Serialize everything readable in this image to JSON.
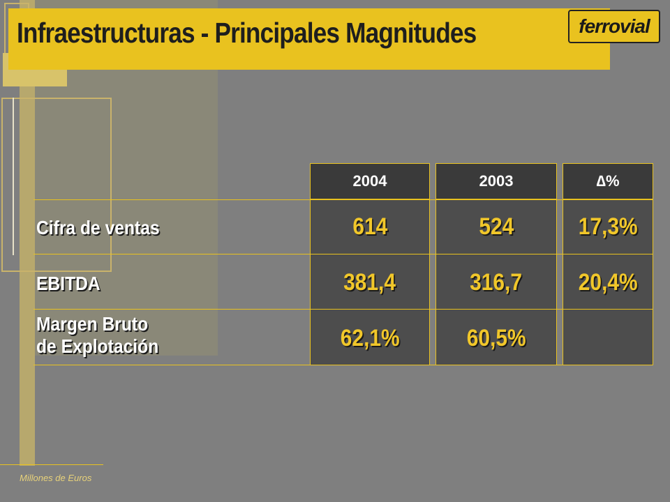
{
  "slide": {
    "title": "Infraestructuras - Principales Magnitudes",
    "logo_text": "ferrovial",
    "footnote": "Millones de Euros"
  },
  "table": {
    "columns": [
      "2004",
      "2003",
      "∆%"
    ],
    "rows": [
      {
        "label_lines": [
          "Cifra de ventas"
        ],
        "values": [
          "614",
          "524",
          "17,3%"
        ]
      },
      {
        "label_lines": [
          "EBITDA"
        ],
        "values": [
          "381,4",
          "316,7",
          "20,4%"
        ]
      },
      {
        "label_lines": [
          "Margen Bruto",
          "de Explotación"
        ],
        "values": [
          "62,1%",
          "60,5%",
          ""
        ]
      }
    ]
  },
  "colors": {
    "background": "#7f7f7f",
    "accent_yellow": "#e9c21f",
    "value_yellow": "#f1c72a",
    "header_dark": "#3a3a3a",
    "column_gray": "#4d4d4d"
  }
}
